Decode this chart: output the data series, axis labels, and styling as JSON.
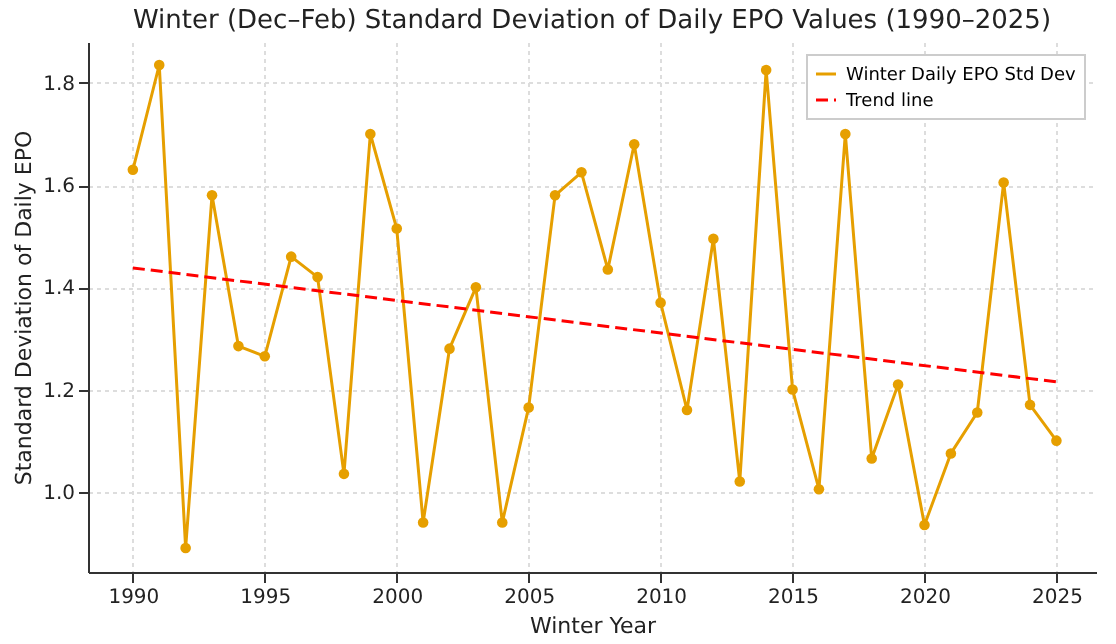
{
  "chart_data": {
    "type": "line",
    "title": "Winter (Dec–Feb) Standard Deviation of Daily EPO Values (1990–2025)",
    "xlabel": "Winter Year",
    "ylabel": "Standard Deviation of Daily EPO",
    "x": [
      1990,
      1991,
      1992,
      1993,
      1994,
      1995,
      1996,
      1997,
      1998,
      1999,
      2000,
      2001,
      2002,
      2003,
      2004,
      2005,
      2006,
      2007,
      2008,
      2009,
      2010,
      2011,
      2012,
      2013,
      2014,
      2015,
      2016,
      2017,
      2018,
      2019,
      2020,
      2021,
      2022,
      2023,
      2024,
      2025
    ],
    "series": [
      {
        "name": "Winter Daily EPO Std Dev",
        "color": "#e69f00",
        "marker": "circle",
        "line_style": "solid",
        "values": [
          1.63,
          1.835,
          0.89,
          1.58,
          1.285,
          1.265,
          1.46,
          1.42,
          1.035,
          1.7,
          1.515,
          0.94,
          1.28,
          1.4,
          0.94,
          1.165,
          1.58,
          1.625,
          1.435,
          1.68,
          1.37,
          1.16,
          1.495,
          1.02,
          1.825,
          1.2,
          1.005,
          1.7,
          1.065,
          1.21,
          0.935,
          1.075,
          1.155,
          1.605,
          1.17,
          1.1
        ]
      },
      {
        "name": "Trend line",
        "color": "#ff0000",
        "marker": "none",
        "line_style": "dashed",
        "x": [
          1990,
          2025
        ],
        "values": [
          1.438,
          1.215
        ]
      }
    ],
    "xlim": [
      1988.3,
      2026.5
    ],
    "xticks": [
      1990,
      1995,
      2000,
      2005,
      2010,
      2015,
      2020,
      2025
    ],
    "ylim": [
      0.843,
      1.88
    ],
    "yticks": [
      {
        "value": 1,
        "label": "1.0"
      },
      1.2,
      1.4,
      1.6,
      1.8
    ],
    "grid": true,
    "legend": "top right"
  }
}
